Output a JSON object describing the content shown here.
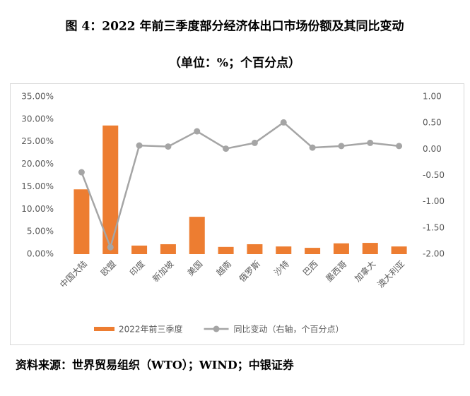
{
  "chart_data": {
    "type": "bar",
    "title": "图 4：2022 年前三季度部分经济体出口市场份额及其同比变动",
    "subtitle": "（单位：%；个百分点）",
    "source": "资料来源：世界贸易组织（WTO）；WIND；中银证券",
    "categories": [
      "中国大陆",
      "欧盟",
      "印度",
      "新加坡",
      "美国",
      "越南",
      "俄罗斯",
      "沙特",
      "巴西",
      "墨西哥",
      "加拿大",
      "澳大利亚"
    ],
    "series": [
      {
        "name": "2022年前三季度",
        "type": "bar",
        "color": "#ed7d31",
        "values": [
          14.4,
          28.6,
          1.9,
          2.2,
          8.3,
          1.6,
          2.2,
          1.7,
          1.4,
          2.4,
          2.5,
          1.7
        ]
      },
      {
        "name": "同比变动（右轴，个百分点）",
        "type": "line",
        "axis": "y2",
        "color": "#a5a5a5",
        "values": [
          -0.44,
          -1.87,
          0.07,
          0.05,
          0.34,
          0.01,
          0.12,
          0.51,
          0.03,
          0.06,
          0.12,
          0.06
        ]
      }
    ],
    "ylim": [
      0,
      35
    ],
    "yticks": [
      {
        "value": 0,
        "label": "0.00%"
      },
      {
        "value": 5,
        "label": "5.00%"
      },
      {
        "value": 10,
        "label": "10.00%"
      },
      {
        "value": 15,
        "label": "15.00%"
      },
      {
        "value": 20,
        "label": "20.00%"
      },
      {
        "value": 25,
        "label": "25.00%"
      },
      {
        "value": 30,
        "label": "30.00%"
      },
      {
        "value": 35,
        "label": "35.00%"
      }
    ],
    "y2lim": [
      -2,
      1
    ],
    "y2ticks": [
      {
        "value": -2,
        "label": "-2.00"
      },
      {
        "value": -1.5,
        "label": "-1.50"
      },
      {
        "value": -1,
        "label": "-1.00"
      },
      {
        "value": -0.5,
        "label": "-0.50"
      },
      {
        "value": 0,
        "label": "0.00"
      },
      {
        "value": 0.5,
        "label": "0.50"
      },
      {
        "value": 1,
        "label": "1.00"
      }
    ],
    "grid": false
  }
}
